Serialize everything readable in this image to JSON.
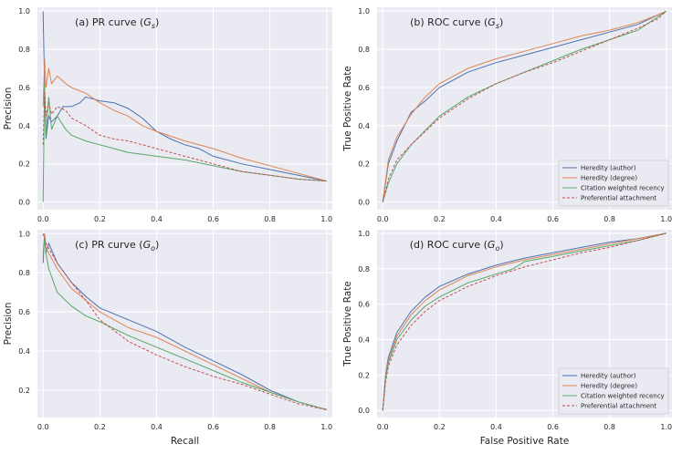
{
  "chart_data": [
    {
      "id": "a",
      "type": "line",
      "title": "(a) PR curve (",
      "title_sub": "s",
      "xlabel": "",
      "ylabel": "Precision",
      "xlim": [
        -0.02,
        1.02
      ],
      "ylim": [
        -0.04,
        1.02
      ],
      "xticks": [
        "0.0",
        "0.2",
        "0.4",
        "0.6",
        "0.8",
        "1.0"
      ],
      "yticks": [
        "0.0",
        "0.2",
        "0.4",
        "0.6",
        "0.8",
        "1.0"
      ],
      "legend": null,
      "series": [
        {
          "name": "Heredity (author)",
          "color": "#4c72b0",
          "dash": "",
          "x": [
            0,
            0.005,
            0.01,
            0.02,
            0.03,
            0.05,
            0.07,
            0.1,
            0.13,
            0.15,
            0.2,
            0.25,
            0.3,
            0.35,
            0.4,
            0.45,
            0.5,
            0.55,
            0.6,
            0.7,
            0.8,
            0.9,
            1.0
          ],
          "y": [
            1.0,
            0.6,
            0.33,
            0.45,
            0.42,
            0.45,
            0.5,
            0.5,
            0.52,
            0.55,
            0.53,
            0.52,
            0.49,
            0.44,
            0.37,
            0.33,
            0.3,
            0.28,
            0.24,
            0.2,
            0.17,
            0.14,
            0.11
          ]
        },
        {
          "name": "Heredity (degree)",
          "color": "#dd8452",
          "dash": "",
          "x": [
            0,
            0.005,
            0.01,
            0.02,
            0.03,
            0.05,
            0.08,
            0.1,
            0.15,
            0.2,
            0.25,
            0.3,
            0.35,
            0.4,
            0.5,
            0.6,
            0.7,
            0.8,
            0.9,
            1.0
          ],
          "y": [
            0.5,
            0.75,
            0.6,
            0.7,
            0.62,
            0.66,
            0.62,
            0.6,
            0.57,
            0.52,
            0.48,
            0.45,
            0.4,
            0.37,
            0.32,
            0.28,
            0.23,
            0.19,
            0.15,
            0.11
          ]
        },
        {
          "name": "Citation weighted recency",
          "color": "#55a868",
          "dash": "",
          "x": [
            0,
            0.005,
            0.01,
            0.02,
            0.03,
            0.05,
            0.08,
            0.1,
            0.15,
            0.2,
            0.25,
            0.3,
            0.35,
            0.4,
            0.5,
            0.6,
            0.7,
            0.8,
            0.9,
            1.0
          ],
          "y": [
            0.0,
            0.62,
            0.35,
            0.55,
            0.38,
            0.45,
            0.38,
            0.35,
            0.32,
            0.3,
            0.28,
            0.26,
            0.25,
            0.24,
            0.22,
            0.19,
            0.16,
            0.14,
            0.12,
            0.11
          ]
        },
        {
          "name": "Preferential attachment",
          "color": "#c44e52",
          "dash": "3,2",
          "x": [
            0,
            0.005,
            0.01,
            0.02,
            0.03,
            0.05,
            0.08,
            0.1,
            0.15,
            0.2,
            0.25,
            0.3,
            0.35,
            0.4,
            0.5,
            0.6,
            0.7,
            0.8,
            0.9,
            1.0
          ],
          "y": [
            0.3,
            0.58,
            0.45,
            0.52,
            0.46,
            0.5,
            0.48,
            0.44,
            0.4,
            0.35,
            0.33,
            0.32,
            0.3,
            0.28,
            0.24,
            0.2,
            0.16,
            0.14,
            0.12,
            0.11
          ]
        }
      ]
    },
    {
      "id": "b",
      "type": "line",
      "title": "(b) ROC curve (",
      "title_sub": "s",
      "xlabel": "",
      "ylabel": "True Positive Rate",
      "xlim": [
        -0.02,
        1.02
      ],
      "ylim": [
        -0.04,
        1.02
      ],
      "xticks": [
        "0.0",
        "0.2",
        "0.4",
        "0.6",
        "0.8",
        "1.0"
      ],
      "yticks": [
        "0.0",
        "0.2",
        "0.4",
        "0.6",
        "0.8",
        "1.0"
      ],
      "legend": "bottom-right",
      "series": [
        {
          "name": "Heredity (author)",
          "color": "#4c72b0",
          "dash": "",
          "x": [
            0,
            0.02,
            0.05,
            0.1,
            0.15,
            0.2,
            0.3,
            0.4,
            0.5,
            0.6,
            0.7,
            0.8,
            0.9,
            0.97,
            1.0
          ],
          "y": [
            0,
            0.2,
            0.32,
            0.47,
            0.53,
            0.6,
            0.68,
            0.73,
            0.77,
            0.81,
            0.85,
            0.89,
            0.93,
            0.98,
            1.0
          ]
        },
        {
          "name": "Heredity (degree)",
          "color": "#dd8452",
          "dash": "",
          "x": [
            0,
            0.02,
            0.05,
            0.1,
            0.15,
            0.2,
            0.3,
            0.4,
            0.5,
            0.6,
            0.7,
            0.8,
            0.9,
            0.97,
            1.0
          ],
          "y": [
            0,
            0.22,
            0.34,
            0.46,
            0.55,
            0.62,
            0.7,
            0.75,
            0.79,
            0.83,
            0.87,
            0.9,
            0.94,
            0.98,
            1.0
          ]
        },
        {
          "name": "Citation weighted recency",
          "color": "#55a868",
          "dash": "",
          "x": [
            0,
            0.02,
            0.05,
            0.1,
            0.2,
            0.3,
            0.4,
            0.5,
            0.6,
            0.7,
            0.8,
            0.9,
            0.97,
            1.0
          ],
          "y": [
            0,
            0.1,
            0.2,
            0.3,
            0.45,
            0.55,
            0.62,
            0.68,
            0.74,
            0.8,
            0.85,
            0.9,
            0.97,
            1.0
          ]
        },
        {
          "name": "Preferential attachment",
          "color": "#c44e52",
          "dash": "3,2",
          "x": [
            0,
            0.02,
            0.05,
            0.1,
            0.2,
            0.3,
            0.4,
            0.5,
            0.6,
            0.7,
            0.8,
            0.9,
            0.97,
            1.0
          ],
          "y": [
            0,
            0.12,
            0.22,
            0.3,
            0.44,
            0.54,
            0.62,
            0.68,
            0.73,
            0.79,
            0.85,
            0.91,
            0.96,
            1.0
          ]
        }
      ]
    },
    {
      "id": "c",
      "type": "line",
      "title": "(c) PR curve (",
      "title_sub": "o",
      "xlabel": "Recall",
      "ylabel": "Precision",
      "xlim": [
        -0.02,
        1.02
      ],
      "ylim": [
        0.06,
        1.02
      ],
      "xticks": [
        "0.0",
        "0.2",
        "0.4",
        "0.6",
        "0.8",
        "1.0"
      ],
      "yticks": [
        "0.2",
        "0.4",
        "0.6",
        "0.8",
        "1.0"
      ],
      "legend": null,
      "series": [
        {
          "name": "Heredity (author)",
          "color": "#4c72b0",
          "dash": "",
          "x": [
            0,
            0.005,
            0.01,
            0.02,
            0.05,
            0.1,
            0.15,
            0.2,
            0.3,
            0.4,
            0.5,
            0.6,
            0.7,
            0.8,
            0.9,
            1.0
          ],
          "y": [
            0.85,
            1.0,
            0.9,
            0.95,
            0.85,
            0.75,
            0.68,
            0.62,
            0.56,
            0.5,
            0.42,
            0.35,
            0.28,
            0.2,
            0.14,
            0.1
          ]
        },
        {
          "name": "Heredity (degree)",
          "color": "#dd8452",
          "dash": "",
          "x": [
            0,
            0.005,
            0.01,
            0.02,
            0.05,
            0.1,
            0.15,
            0.2,
            0.3,
            0.4,
            0.5,
            0.6,
            0.7,
            0.8,
            0.9,
            1.0
          ],
          "y": [
            0.9,
            1.0,
            0.93,
            0.9,
            0.82,
            0.72,
            0.66,
            0.6,
            0.52,
            0.47,
            0.4,
            0.33,
            0.26,
            0.19,
            0.14,
            0.1
          ]
        },
        {
          "name": "Citation weighted recency",
          "color": "#55a868",
          "dash": "",
          "x": [
            0,
            0.005,
            0.01,
            0.02,
            0.05,
            0.1,
            0.15,
            0.2,
            0.3,
            0.4,
            0.5,
            0.6,
            0.7,
            0.8,
            0.9,
            1.0
          ],
          "y": [
            0.88,
            0.98,
            0.9,
            0.82,
            0.7,
            0.63,
            0.58,
            0.55,
            0.48,
            0.42,
            0.36,
            0.3,
            0.24,
            0.19,
            0.14,
            0.1
          ]
        },
        {
          "name": "Preferential attachment",
          "color": "#c44e52",
          "dash": "3,2",
          "x": [
            0,
            0.01,
            0.05,
            0.1,
            0.15,
            0.2,
            0.3,
            0.4,
            0.5,
            0.6,
            0.7,
            0.8,
            0.9,
            1.0
          ],
          "y": [
            1.0,
            0.95,
            0.85,
            0.75,
            0.66,
            0.56,
            0.45,
            0.38,
            0.32,
            0.27,
            0.23,
            0.18,
            0.13,
            0.1
          ]
        }
      ]
    },
    {
      "id": "d",
      "type": "line",
      "title": "(d) ROC curve (",
      "title_sub": "o",
      "xlabel": "False Positive Rate",
      "ylabel": "True Positive Rate",
      "xlim": [
        -0.02,
        1.02
      ],
      "ylim": [
        -0.04,
        1.02
      ],
      "xticks": [
        "0.0",
        "0.2",
        "0.4",
        "0.6",
        "0.8",
        "1.0"
      ],
      "yticks": [
        "0.0",
        "0.2",
        "0.4",
        "0.6",
        "0.8",
        "1.0"
      ],
      "legend": "bottom-right",
      "series": [
        {
          "name": "Heredity (author)",
          "color": "#4c72b0",
          "dash": "",
          "x": [
            0,
            0.01,
            0.02,
            0.05,
            0.1,
            0.15,
            0.2,
            0.3,
            0.4,
            0.5,
            0.6,
            0.7,
            0.8,
            0.9,
            1.0
          ],
          "y": [
            0,
            0.2,
            0.3,
            0.44,
            0.56,
            0.64,
            0.7,
            0.77,
            0.82,
            0.86,
            0.89,
            0.92,
            0.95,
            0.97,
            1.0
          ]
        },
        {
          "name": "Heredity (degree)",
          "color": "#dd8452",
          "dash": "",
          "x": [
            0,
            0.01,
            0.02,
            0.05,
            0.1,
            0.15,
            0.2,
            0.3,
            0.4,
            0.5,
            0.6,
            0.7,
            0.8,
            0.9,
            1.0
          ],
          "y": [
            0,
            0.19,
            0.28,
            0.42,
            0.54,
            0.62,
            0.68,
            0.76,
            0.81,
            0.85,
            0.88,
            0.91,
            0.94,
            0.97,
            1.0
          ]
        },
        {
          "name": "Citation weighted recency",
          "color": "#55a868",
          "dash": "",
          "x": [
            0,
            0.01,
            0.02,
            0.05,
            0.1,
            0.15,
            0.2,
            0.3,
            0.4,
            0.46,
            0.5,
            0.6,
            0.7,
            0.8,
            0.9,
            1.0
          ],
          "y": [
            0,
            0.18,
            0.27,
            0.4,
            0.51,
            0.59,
            0.64,
            0.72,
            0.77,
            0.8,
            0.84,
            0.87,
            0.9,
            0.93,
            0.96,
            1.0
          ]
        },
        {
          "name": "Preferential attachment",
          "color": "#c44e52",
          "dash": "3,2",
          "x": [
            0,
            0.01,
            0.02,
            0.05,
            0.1,
            0.15,
            0.2,
            0.3,
            0.4,
            0.5,
            0.6,
            0.7,
            0.8,
            0.9,
            1.0
          ],
          "y": [
            0,
            0.16,
            0.25,
            0.37,
            0.48,
            0.56,
            0.62,
            0.7,
            0.76,
            0.81,
            0.85,
            0.89,
            0.92,
            0.96,
            1.0
          ]
        }
      ]
    }
  ]
}
